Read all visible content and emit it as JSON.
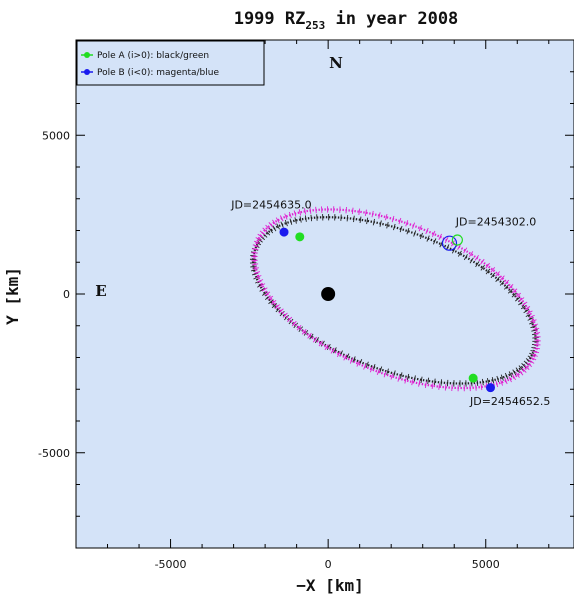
{
  "chart_data": {
    "type": "scatter",
    "title": {
      "object": "1999 RZ",
      "object_sub": "253",
      "suffix": " in year 2008"
    },
    "xlabel": "−X [km]",
    "ylabel": "Y [km]",
    "xlim": [
      -8000,
      7800
    ],
    "ylim": [
      -8000,
      8000
    ],
    "xticks": [
      {
        "value": -5000,
        "label": "-5000"
      },
      {
        "value": 0,
        "label": "0"
      },
      {
        "value": 5000,
        "label": "5000"
      }
    ],
    "yticks": [
      {
        "value": -5000,
        "label": "-5000"
      },
      {
        "value": 0,
        "label": "0"
      },
      {
        "value": 5000,
        "label": "5000"
      }
    ],
    "background_color": "#d4e3f8",
    "compass": {
      "north": "N",
      "east": "E"
    },
    "primary": {
      "x": 0,
      "y": 0
    },
    "orbits": [
      {
        "pole": "A",
        "color": "#222222",
        "center": [
          2100,
          -200
        ],
        "semi_major": 4700,
        "semi_minor": 2200,
        "tilt_deg": -20
      },
      {
        "pole": "B",
        "color": "#e020d0",
        "center": [
          2150,
          -150
        ],
        "semi_major": 4750,
        "semi_minor": 2350,
        "tilt_deg": -22
      }
    ],
    "legend": {
      "position": "top-left",
      "entries": [
        {
          "label": "Pole A (i>0): black/green",
          "color": "#22dd22"
        },
        {
          "label": "Pole B (i<0): magenta/blue",
          "color": "#1a1aee"
        }
      ]
    },
    "markers": [
      {
        "pole": "B",
        "x": -1400,
        "y": 1950,
        "color": "#1a1aee"
      },
      {
        "pole": "A",
        "x": -900,
        "y": 1800,
        "color": "#22dd22"
      },
      {
        "pole": "A",
        "x": 4600,
        "y": -2650,
        "color": "#22dd22"
      },
      {
        "pole": "B",
        "x": 5150,
        "y": -2950,
        "color": "#1a1aee"
      }
    ],
    "open_markers": [
      {
        "pole": "B",
        "x": 3850,
        "y": 1600,
        "color": "#1a1aee",
        "r": 7
      },
      {
        "pole": "A",
        "x": 4100,
        "y": 1700,
        "color": "#22dd22",
        "r": 5
      }
    ],
    "annotations": [
      {
        "text": "JD=2454635.0",
        "x": -1800,
        "y": 2700,
        "anchor": "middle"
      },
      {
        "text": "JD=2454302.0",
        "x": 4050,
        "y": 2150,
        "anchor": "start"
      },
      {
        "text": "JD=2454652.5",
        "x": 4500,
        "y": -3500,
        "anchor": "start"
      }
    ]
  }
}
